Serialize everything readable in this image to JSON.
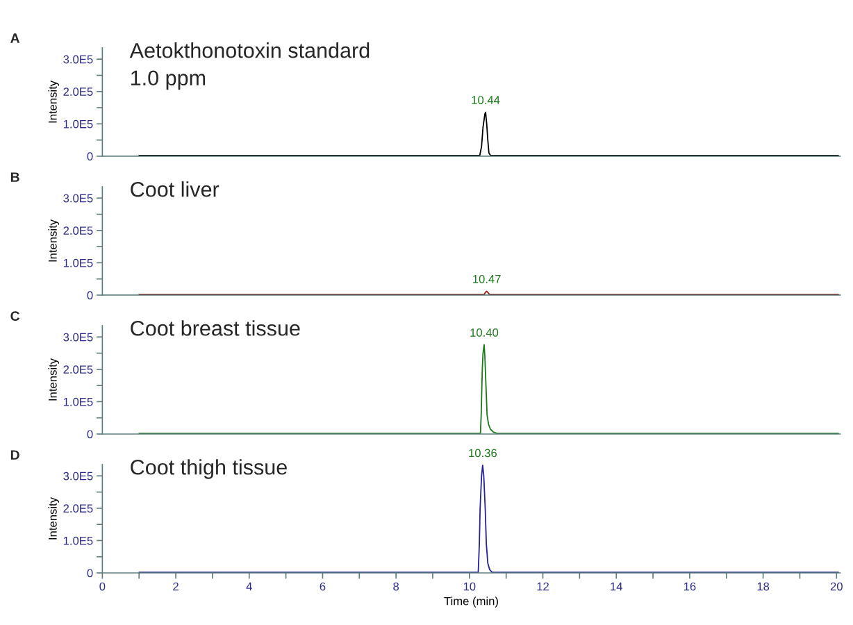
{
  "chart_data": [
    {
      "type": "line",
      "title": "A",
      "ylabel": "Intensity",
      "color": "#000000",
      "xlim": [
        0,
        20.1
      ],
      "ylim": [
        0,
        335000
      ],
      "tick_labels": "y",
      "yticks": [
        0,
        {
          "value": 50000,
          "label": null
        },
        {
          "value": 100000,
          "label": "1.0E5"
        },
        {
          "value": 150000,
          "label": null
        },
        {
          "value": 200000,
          "label": "2.0E5"
        },
        {
          "value": 250000,
          "label": null
        },
        {
          "value": 300000,
          "label": "3.0E5"
        }
      ],
      "x": [
        1,
        2,
        3,
        4,
        5,
        6,
        7,
        8,
        9,
        10,
        10.28,
        10.33,
        10.37,
        10.42,
        10.44,
        10.47,
        10.5,
        10.53,
        10.57,
        10.6,
        11,
        12,
        13,
        14,
        15,
        16,
        17,
        18,
        19,
        20.05
      ],
      "values": [
        2000,
        2000,
        2000,
        2000,
        2000,
        2000,
        2000,
        2000,
        2000,
        2000,
        2000,
        30000,
        90000,
        130000,
        136000,
        100000,
        50000,
        10000,
        3000,
        2000,
        2000,
        2000,
        2000,
        2000,
        2000,
        2000,
        2000,
        2000,
        2000,
        2000
      ],
      "annotations": [
        "Aetokthonotoxin standard\n1.0 ppm",
        {
          "text": "10.44",
          "x": 10.44,
          "y": 136000
        }
      ]
    },
    {
      "type": "line",
      "title": "B",
      "ylabel": "Intensity",
      "color": "#9b1c1c",
      "xlim": [
        0,
        20.1
      ],
      "ylim": [
        0,
        335000
      ],
      "tick_labels": "y",
      "yticks": [
        0,
        {
          "value": 50000,
          "label": null
        },
        {
          "value": 100000,
          "label": "1.0E5"
        },
        {
          "value": 150000,
          "label": null
        },
        {
          "value": 200000,
          "label": "2.0E5"
        },
        {
          "value": 250000,
          "label": null
        },
        {
          "value": 300000,
          "label": "3.0E5"
        }
      ],
      "x": [
        1,
        2,
        3,
        4,
        5,
        6,
        7,
        8,
        9,
        10,
        10.4,
        10.44,
        10.47,
        10.5,
        10.55,
        11,
        12,
        13,
        14,
        15,
        16,
        17,
        18,
        19,
        20.05
      ],
      "values": [
        2000,
        2000,
        2000,
        2000,
        2000,
        2000,
        2000,
        2000,
        2000,
        2000,
        2000,
        9000,
        12000,
        8000,
        2000,
        2000,
        2000,
        2000,
        2000,
        2000,
        2000,
        2000,
        2000,
        2000,
        2000
      ],
      "annotations": [
        "Coot liver",
        {
          "text": "10.47",
          "x": 10.47,
          "y": 12000
        }
      ]
    },
    {
      "type": "line",
      "title": "C",
      "ylabel": "Intensity",
      "color": "#1c7a1c",
      "xlim": [
        0,
        20.1
      ],
      "ylim": [
        0,
        335000
      ],
      "tick_labels": "y",
      "yticks": [
        0,
        {
          "value": 50000,
          "label": null
        },
        {
          "value": 100000,
          "label": "1.0E5"
        },
        {
          "value": 150000,
          "label": null
        },
        {
          "value": 200000,
          "label": "2.0E5"
        },
        {
          "value": 250000,
          "label": null
        },
        {
          "value": 300000,
          "label": "3.0E5"
        }
      ],
      "x": [
        1,
        2,
        3,
        4,
        5,
        6,
        7,
        8,
        9,
        10,
        10.3,
        10.32,
        10.35,
        10.37,
        10.4,
        10.42,
        10.45,
        10.48,
        10.52,
        10.57,
        10.65,
        10.75,
        11,
        12,
        13,
        14,
        15,
        16,
        17,
        18,
        19,
        20.05
      ],
      "values": [
        2000,
        2000,
        2000,
        2000,
        2000,
        2000,
        2000,
        2000,
        2000,
        2000,
        2000,
        60000,
        200000,
        250000,
        276000,
        240000,
        150000,
        60000,
        30000,
        15000,
        6000,
        2000,
        2000,
        2000,
        2000,
        2000,
        2000,
        2000,
        2000,
        2000,
        2000,
        2000
      ],
      "annotations": [
        "Coot breast tissue",
        {
          "text": "10.40",
          "x": 10.4,
          "y": 276000
        }
      ]
    },
    {
      "type": "line",
      "title": "D",
      "ylabel": "Intensity",
      "xlabel": "Time (min)",
      "color": "#23239a",
      "xlim": [
        0,
        20.1
      ],
      "ylim": [
        0,
        335000
      ],
      "yticks": [
        0,
        {
          "value": 50000,
          "label": null
        },
        {
          "value": 100000,
          "label": "1.0E5"
        },
        {
          "value": 150000,
          "label": null
        },
        {
          "value": 200000,
          "label": "2.0E5"
        },
        {
          "value": 250000,
          "label": null
        },
        {
          "value": 300000,
          "label": "3.0E5"
        }
      ],
      "xticks": [
        0,
        {
          "value": 1,
          "label": null
        },
        2,
        {
          "value": 3,
          "label": null
        },
        4,
        {
          "value": 5,
          "label": null
        },
        6,
        {
          "value": 7,
          "label": null
        },
        8,
        {
          "value": 9,
          "label": null
        },
        10,
        {
          "value": 11,
          "label": null
        },
        12,
        {
          "value": 13,
          "label": null
        },
        14,
        {
          "value": 15,
          "label": null
        },
        16,
        {
          "value": 17,
          "label": null
        },
        18,
        {
          "value": 19,
          "label": null
        },
        20
      ],
      "x": [
        1,
        2,
        3,
        4,
        5,
        6,
        7,
        8,
        9,
        10,
        10.24,
        10.27,
        10.29,
        10.33,
        10.36,
        10.39,
        10.43,
        10.46,
        10.5,
        10.55,
        10.62,
        11,
        12,
        13,
        14,
        15,
        16,
        17,
        18,
        19,
        20.05
      ],
      "values": [
        2000,
        2000,
        2000,
        2000,
        2000,
        2000,
        2000,
        2000,
        2000,
        2000,
        2000,
        90000,
        198000,
        300000,
        333000,
        300000,
        198000,
        90000,
        30000,
        10000,
        2000,
        2000,
        2000,
        2000,
        2000,
        2000,
        2000,
        2000,
        2000,
        2000,
        2000
      ],
      "annotations": [
        "Coot thigh tissue",
        {
          "text": "10.36",
          "x": 10.36,
          "y": 333000
        }
      ]
    }
  ]
}
